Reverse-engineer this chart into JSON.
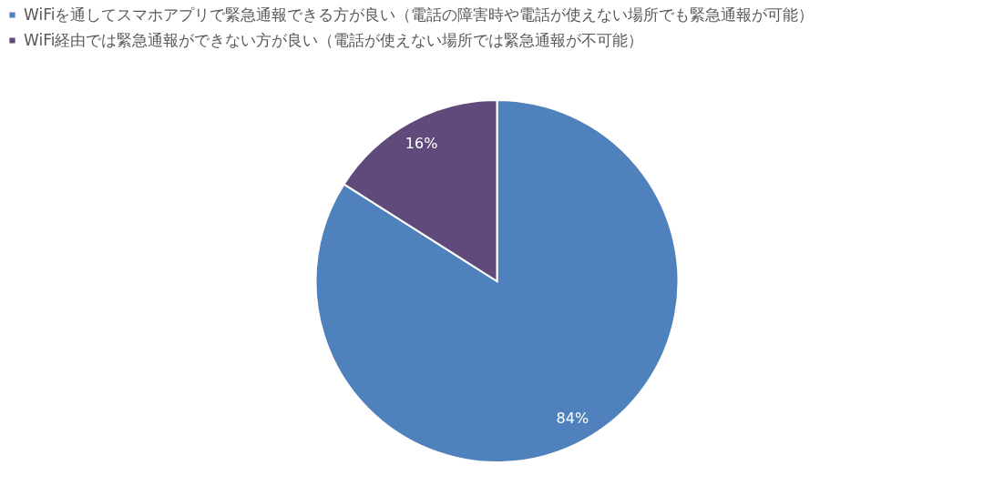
{
  "chart_data": {
    "type": "pie",
    "categories": [
      "WiFiを通してスマホアプリで緊急通報できる方が良い（電話の障害時や電話が使えない場所でも緊急通報が可能）",
      "WiFi経由では緊急通報ができない方が良い（電話が使えない場所では緊急通報が不可能）"
    ],
    "values": [
      84,
      16
    ],
    "colors": [
      "#4f81bd",
      "#604a7b"
    ],
    "value_labels": [
      "84%",
      "16%"
    ],
    "legend": "top"
  }
}
